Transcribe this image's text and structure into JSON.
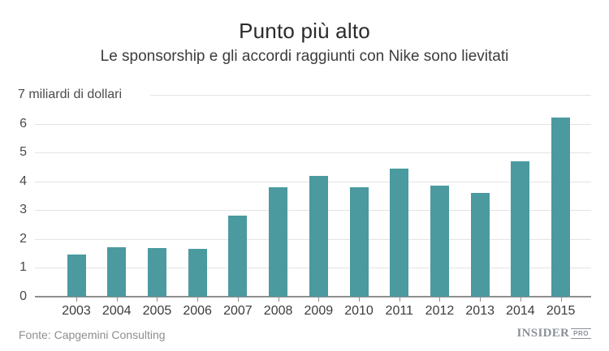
{
  "header": {
    "title": "Punto più alto",
    "subtitle": "Le sponsorship e gli accordi raggiunti con Nike sono lievitati"
  },
  "chart_data": {
    "type": "bar",
    "categories": [
      "2003",
      "2004",
      "2005",
      "2006",
      "2007",
      "2008",
      "2009",
      "2010",
      "2011",
      "2012",
      "2013",
      "2014",
      "2015"
    ],
    "values": [
      1.45,
      1.72,
      1.68,
      1.65,
      2.8,
      3.8,
      4.2,
      3.8,
      4.45,
      3.85,
      3.6,
      4.7,
      6.2
    ],
    "title": "Punto più alto",
    "subtitle": "Le sponsorship e gli accordi raggiunti con Nike sono lievitati",
    "xlabel": "",
    "ylabel": "miliardi di dollari",
    "unit_label": "7 miliardi di dollari",
    "ylim": [
      0,
      7
    ],
    "yticks": [
      0,
      1,
      2,
      3,
      4,
      5,
      6,
      7
    ],
    "grid": true,
    "legend": false,
    "bar_color": "#4a9aa0",
    "gridline_color": "#e4e4e4",
    "axis_color": "#8f8f8f"
  },
  "footer": {
    "source": "Fonte: Capgemini Consulting",
    "logo_main": "INSIDER",
    "logo_suffix": "PRO"
  }
}
